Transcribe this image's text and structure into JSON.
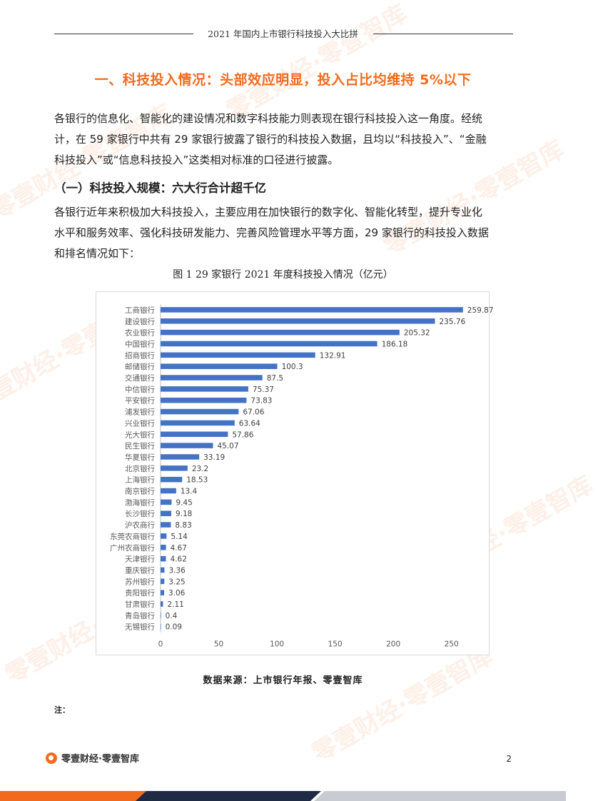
{
  "header": {
    "title": "2021 年国内上市银行科技投入大比拼"
  },
  "section": {
    "title": "一、科技投入情况：头部效应明显，投入占比均维持 5%以下"
  },
  "paragraph1": {
    "lines": [
      "各银行的信息化、智能化的建设情况和数字科技能力则表现在银行科技投入这一角度。经统",
      "计，在 59 家银行中共有 29 家银行披露了银行的科技投入数据，且均以“科技投入”、“金融",
      "科技投入”或“信息科技投入”这类相对标准的口径进行披露。"
    ]
  },
  "subheading": {
    "text": "（一）科技投入规模：六大行合计超千亿"
  },
  "paragraph2": {
    "lines": [
      "各银行近年来积极加大科技投入，主要应用在加快银行的数字化、智能化转型，提升专业化",
      "水平和服务效率、强化科技研发能力、完善风险管理水平等方面，29 家银行的科技投入数据",
      "和排名情况如下："
    ]
  },
  "figure": {
    "caption": "图 1  29 家银行 2021 年度科技投入情况（亿元）"
  },
  "chart_data": {
    "type": "bar",
    "orientation": "horizontal",
    "categories": [
      "工商银行",
      "建设银行",
      "农业银行",
      "中国银行",
      "招商银行",
      "邮储银行",
      "交通银行",
      "中信银行",
      "平安银行",
      "浦发银行",
      "兴业银行",
      "光大银行",
      "民生银行",
      "华夏银行",
      "北京银行",
      "上海银行",
      "南京银行",
      "渤海银行",
      "长沙银行",
      "沪农商行",
      "东莞农商银行",
      "广州农商银行",
      "天津银行",
      "重庆银行",
      "苏州银行",
      "贵阳银行",
      "甘肃银行",
      "青岛银行",
      "无锡银行"
    ],
    "values": [
      259.87,
      235.76,
      205.32,
      186.18,
      132.91,
      100.3,
      87.5,
      75.37,
      73.83,
      67.06,
      63.64,
      57.86,
      45.07,
      33.19,
      23.2,
      18.53,
      13.4,
      9.45,
      9.18,
      8.83,
      5.14,
      4.67,
      4.62,
      3.36,
      3.25,
      3.06,
      2.11,
      0.4,
      0.09
    ],
    "value_labels": [
      "259.87",
      "235.76",
      "205.32",
      "186.18",
      "132.91",
      "100.3",
      "87.5",
      "75.37",
      "73.83",
      "67.06",
      "63.64",
      "57.86",
      "45.07",
      "33.19",
      "23.2",
      "18.53",
      "13.4",
      "9.45",
      "9.18",
      "8.83",
      "5.14",
      "4.67",
      "4.62",
      "3.36",
      "3.25",
      "3.06",
      "2.11",
      "0.4",
      "0.09"
    ],
    "xticks": [
      "0",
      "50",
      "100",
      "150",
      "200",
      "250"
    ],
    "xlim": [
      0,
      260
    ],
    "bar_color": "#4472c4",
    "grid": false
  },
  "source": {
    "text": "数据来源：上市银行年报、零壹智库"
  },
  "note": {
    "text": "注："
  },
  "footer": {
    "brand": "零壹财经·零壹智库",
    "page": "2"
  },
  "watermark": {
    "text": "零壹财经·零壹智库"
  },
  "colors": {
    "accent": "#f26b1d",
    "navy": "#1f2b44",
    "grey": "#c8ccd2"
  }
}
